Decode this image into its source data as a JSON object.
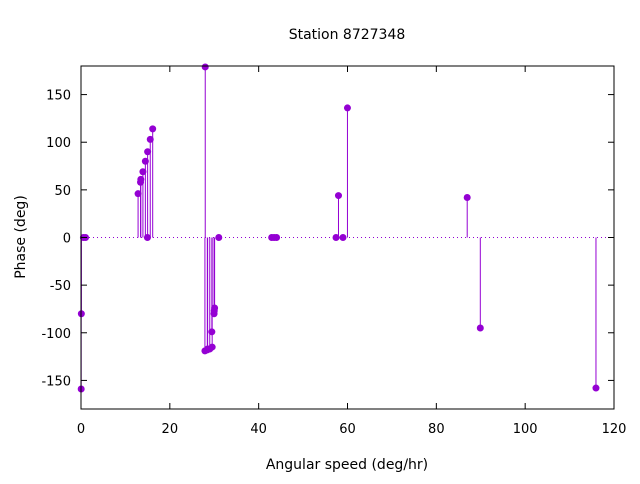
{
  "chart_data": {
    "type": "scatter",
    "style": "impulses-with-points",
    "title": "Station 8727348",
    "xlabel": "Angular speed (deg/hr)",
    "ylabel": "Phase (deg)",
    "xlim": [
      0,
      120
    ],
    "ylim": [
      -180,
      180
    ],
    "x_ticks": [
      0,
      20,
      40,
      60,
      80,
      100,
      120
    ],
    "y_ticks": [
      -150,
      -100,
      -50,
      0,
      50,
      100,
      150
    ],
    "x_tick_labels": [
      "0",
      "20",
      "40",
      "60",
      "80",
      "100",
      "120"
    ],
    "y_tick_labels": [
      "-150",
      "-100",
      "-50",
      "0",
      "50",
      "100",
      "150"
    ],
    "zero_line": "dotted",
    "grid": false,
    "color": "#9400d3",
    "series": [
      {
        "points": [
          {
            "x": 0.04,
            "y": -159
          },
          {
            "x": 0.08,
            "y": -80
          },
          {
            "x": 0.54,
            "y": 0
          },
          {
            "x": 1.02,
            "y": 0
          },
          {
            "x": 12.85,
            "y": 46
          },
          {
            "x": 13.4,
            "y": 58
          },
          {
            "x": 13.47,
            "y": 61
          },
          {
            "x": 13.94,
            "y": 69
          },
          {
            "x": 14.49,
            "y": 80
          },
          {
            "x": 14.96,
            "y": 0
          },
          {
            "x": 15.0,
            "y": 90
          },
          {
            "x": 15.59,
            "y": 103
          },
          {
            "x": 16.14,
            "y": 114
          },
          {
            "x": 27.97,
            "y": 179
          },
          {
            "x": 27.9,
            "y": -119
          },
          {
            "x": 28.44,
            "y": -118
          },
          {
            "x": 28.51,
            "y": -117
          },
          {
            "x": 28.99,
            "y": -117
          },
          {
            "x": 29.46,
            "y": -99
          },
          {
            "x": 29.53,
            "y": -115
          },
          {
            "x": 29.96,
            "y": -80
          },
          {
            "x": 30.0,
            "y": -77
          },
          {
            "x": 30.08,
            "y": -74
          },
          {
            "x": 31.02,
            "y": 0
          },
          {
            "x": 42.93,
            "y": 0
          },
          {
            "x": 43.48,
            "y": 0
          },
          {
            "x": 44.03,
            "y": 0
          },
          {
            "x": 57.42,
            "y": 0
          },
          {
            "x": 57.97,
            "y": 44
          },
          {
            "x": 58.98,
            "y": 0
          },
          {
            "x": 59.99,
            "y": 136
          },
          {
            "x": 86.95,
            "y": 42
          },
          {
            "x": 89.9,
            "y": -95
          },
          {
            "x": 115.94,
            "y": -158
          }
        ]
      }
    ]
  }
}
